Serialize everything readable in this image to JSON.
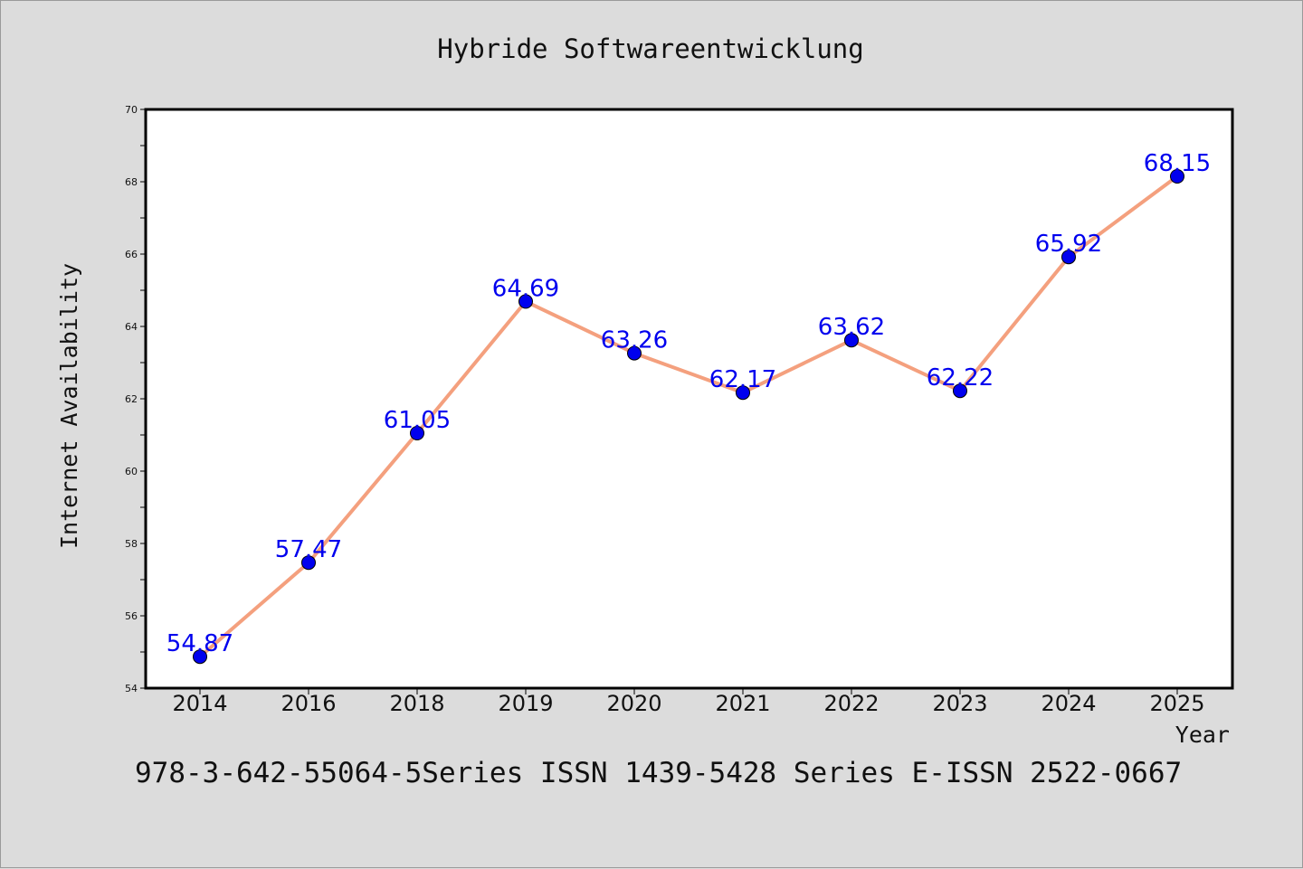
{
  "chart_data": {
    "type": "line",
    "title": "Hybride Softwareentwicklung",
    "xlabel": "Year",
    "ylabel": "Internet Availability",
    "categories": [
      "2014",
      "2016",
      "2018",
      "2019",
      "2020",
      "2021",
      "2022",
      "2023",
      "2024",
      "2025"
    ],
    "series": [
      {
        "values": [
          54.87,
          57.47,
          61.05,
          64.69,
          63.26,
          62.17,
          63.62,
          62.22,
          65.92,
          68.15
        ],
        "labels": [
          "54.87",
          "57.47",
          "61.05",
          "64.69",
          "63.26",
          "62.17",
          "63.62",
          "62.22",
          "65.92",
          "68.15"
        ],
        "line_color": "#f4a07e",
        "marker_color": "#0000ee"
      }
    ],
    "ylim": [
      54,
      70
    ],
    "yticks": [
      54,
      56,
      58,
      60,
      62,
      64,
      66,
      68,
      70
    ],
    "ytick_labels": [
      "54",
      "56",
      "58",
      "60",
      "62",
      "64",
      "66",
      "68",
      "70"
    ],
    "grid": false,
    "legend": "none"
  },
  "footer": {
    "text": "978-3-642-55064-5Series ISSN 1439-5428 Series E-ISSN 2522-0667"
  },
  "colors": {
    "background": "#dcdcdc",
    "plot_background": "#ffffff",
    "line": "#f4a07e",
    "markers": "#0000ee",
    "data_labels": "#0000ee"
  }
}
